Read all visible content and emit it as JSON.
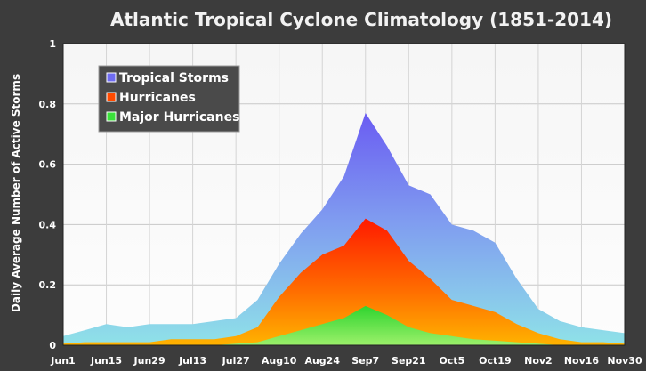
{
  "chart_data": {
    "type": "area",
    "title": "Atlantic Tropical Cyclone Climatology (1851-2014)",
    "xlabel": "",
    "ylabel": "Daily Average Number of Active Storms",
    "ylim": [
      0,
      1
    ],
    "yticks": [
      "0",
      "0.2",
      "0.4",
      "0.6",
      "0.8",
      "1"
    ],
    "xticks": [
      "Jun1",
      "Jun15",
      "Jun29",
      "Jul13",
      "Jul27",
      "Aug10",
      "Aug24",
      "Sep7",
      "Sep21",
      "Oct5",
      "Oct19",
      "Nov2",
      "Nov16",
      "Nov30"
    ],
    "grid": true,
    "legend_position": "top-left",
    "x": [
      "Jun1",
      "Jun8",
      "Jun15",
      "Jun22",
      "Jun29",
      "Jul6",
      "Jul13",
      "Jul20",
      "Jul27",
      "Aug3",
      "Aug10",
      "Aug17",
      "Aug24",
      "Aug31",
      "Sep7",
      "Sep14",
      "Sep21",
      "Sep28",
      "Oct5",
      "Oct12",
      "Oct19",
      "Oct26",
      "Nov2",
      "Nov9",
      "Nov16",
      "Nov23",
      "Nov30"
    ],
    "series": [
      {
        "name": "Tropical Storms",
        "color": "#6f6cf0",
        "values": [
          0.03,
          0.05,
          0.07,
          0.06,
          0.07,
          0.07,
          0.07,
          0.08,
          0.09,
          0.15,
          0.27,
          0.37,
          0.45,
          0.56,
          0.77,
          0.66,
          0.53,
          0.5,
          0.4,
          0.38,
          0.34,
          0.22,
          0.12,
          0.08,
          0.06,
          0.05,
          0.04
        ]
      },
      {
        "name": "Hurricanes",
        "color": "#ff4a00",
        "values": [
          0.005,
          0.01,
          0.01,
          0.01,
          0.01,
          0.02,
          0.02,
          0.02,
          0.03,
          0.06,
          0.16,
          0.24,
          0.3,
          0.33,
          0.42,
          0.38,
          0.28,
          0.22,
          0.15,
          0.13,
          0.11,
          0.07,
          0.04,
          0.02,
          0.01,
          0.01,
          0.005
        ]
      },
      {
        "name": "Major Hurricanes",
        "color": "#3be03b",
        "values": [
          0,
          0,
          0,
          0,
          0,
          0,
          0,
          0,
          0.005,
          0.01,
          0.03,
          0.05,
          0.07,
          0.09,
          0.13,
          0.1,
          0.06,
          0.04,
          0.03,
          0.02,
          0.015,
          0.01,
          0.005,
          0,
          0,
          0,
          0
        ]
      }
    ]
  }
}
